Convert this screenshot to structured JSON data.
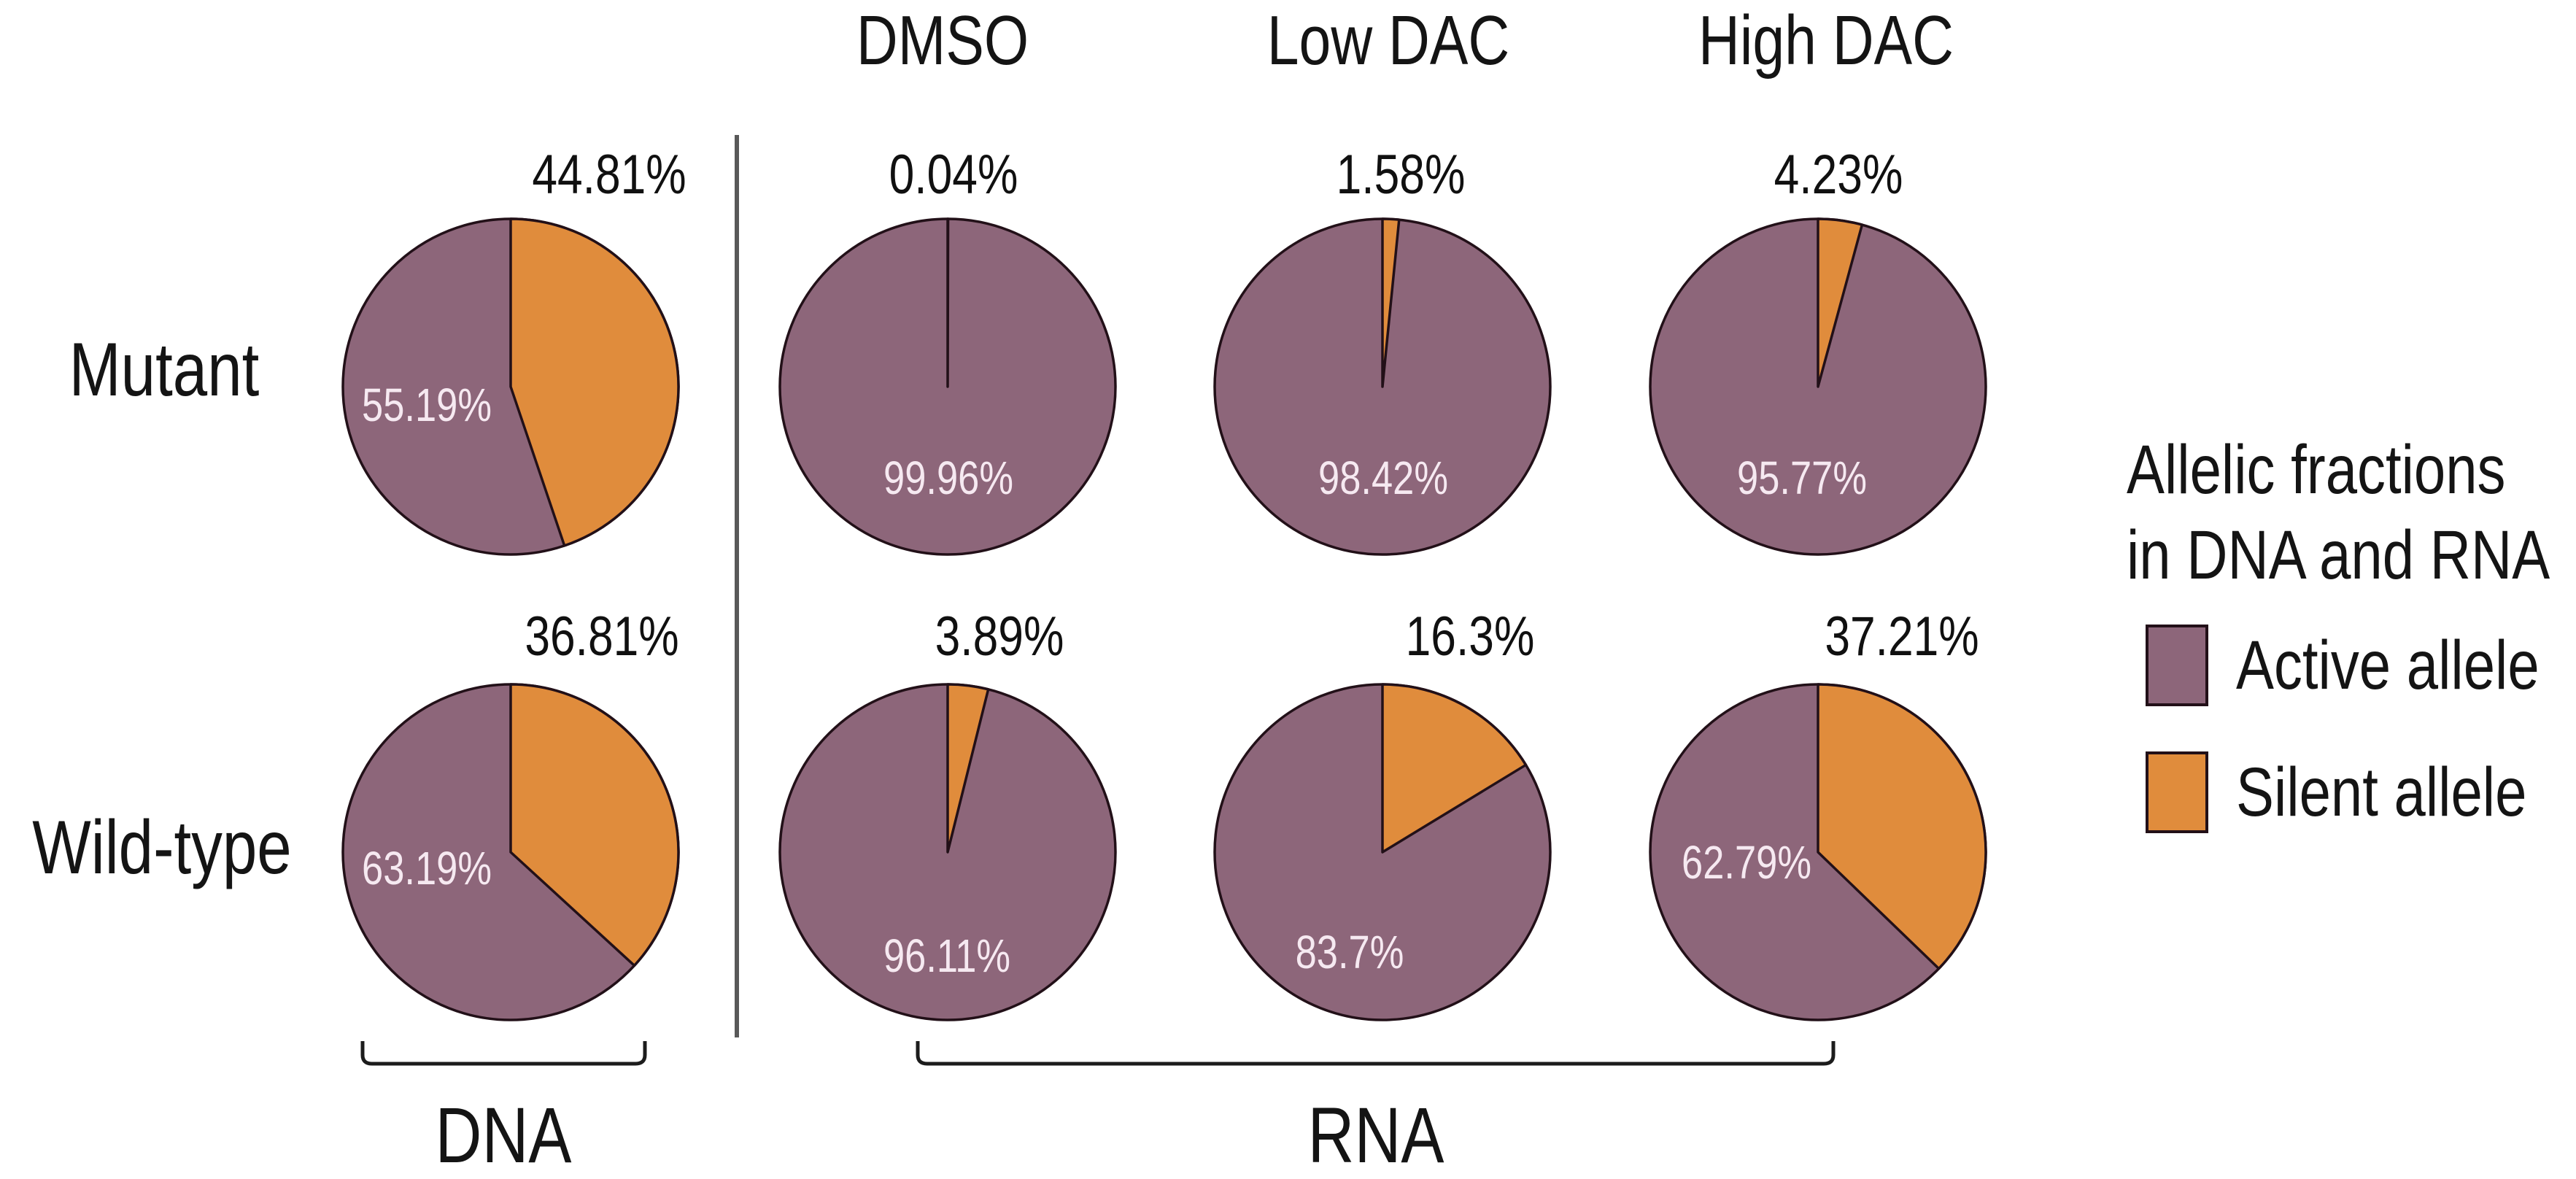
{
  "chart_data": {
    "type": "pie",
    "description": "Grid of eight two-slice pie charts (2 rows x 4 columns) showing allelic fractions; first column is DNA, remaining three columns are RNA under DMSO, Low DAC and High DAC treatments",
    "column_headers": [
      "DMSO",
      "Low DAC",
      "High DAC"
    ],
    "row_labels": [
      "Mutant",
      "Wild-type"
    ],
    "bottom_group_labels": [
      "DNA",
      "RNA"
    ],
    "legend_position": "right",
    "legend": {
      "title": "Allelic fractions in DNA and RNA",
      "title_lines": [
        "Allelic fractions",
        "in DNA and RNA"
      ],
      "entries": [
        {
          "key": "active",
          "label": "Active allele"
        },
        {
          "key": "silent",
          "label": "Silent allele"
        }
      ]
    },
    "colors": {
      "active": "#8D667A",
      "silent": "#E08C3C",
      "outline": "#221018",
      "inner_label": "#F6E9F1",
      "divider": "#595959",
      "bracket": "#1c1c1c"
    },
    "pies": [
      {
        "row": "Mutant",
        "group": "DNA",
        "column": "DNA",
        "active": 55.19,
        "silent": 44.81,
        "active_label": "55.19%",
        "silent_label": "44.81%"
      },
      {
        "row": "Mutant",
        "group": "RNA",
        "column": "DMSO",
        "active": 99.96,
        "silent": 0.04,
        "active_label": "99.96%",
        "silent_label": "0.04%"
      },
      {
        "row": "Mutant",
        "group": "RNA",
        "column": "Low DAC",
        "active": 98.42,
        "silent": 1.58,
        "active_label": "98.42%",
        "silent_label": "1.58%"
      },
      {
        "row": "Mutant",
        "group": "RNA",
        "column": "High DAC",
        "active": 95.77,
        "silent": 4.23,
        "active_label": "95.77%",
        "silent_label": "4.23%"
      },
      {
        "row": "Wild-type",
        "group": "DNA",
        "column": "DNA",
        "active": 63.19,
        "silent": 36.81,
        "active_label": "63.19%",
        "silent_label": "36.81%"
      },
      {
        "row": "Wild-type",
        "group": "RNA",
        "column": "DMSO",
        "active": 96.11,
        "silent": 3.89,
        "active_label": "96.11%",
        "silent_label": "3.89%"
      },
      {
        "row": "Wild-type",
        "group": "RNA",
        "column": "Low DAC",
        "active": 83.7,
        "silent": 16.3,
        "active_label": "83.7%",
        "silent_label": "16.3%"
      },
      {
        "row": "Wild-type",
        "group": "RNA",
        "column": "High DAC",
        "active": 62.79,
        "silent": 37.21,
        "active_label": "62.79%",
        "silent_label": "37.21%"
      }
    ]
  }
}
